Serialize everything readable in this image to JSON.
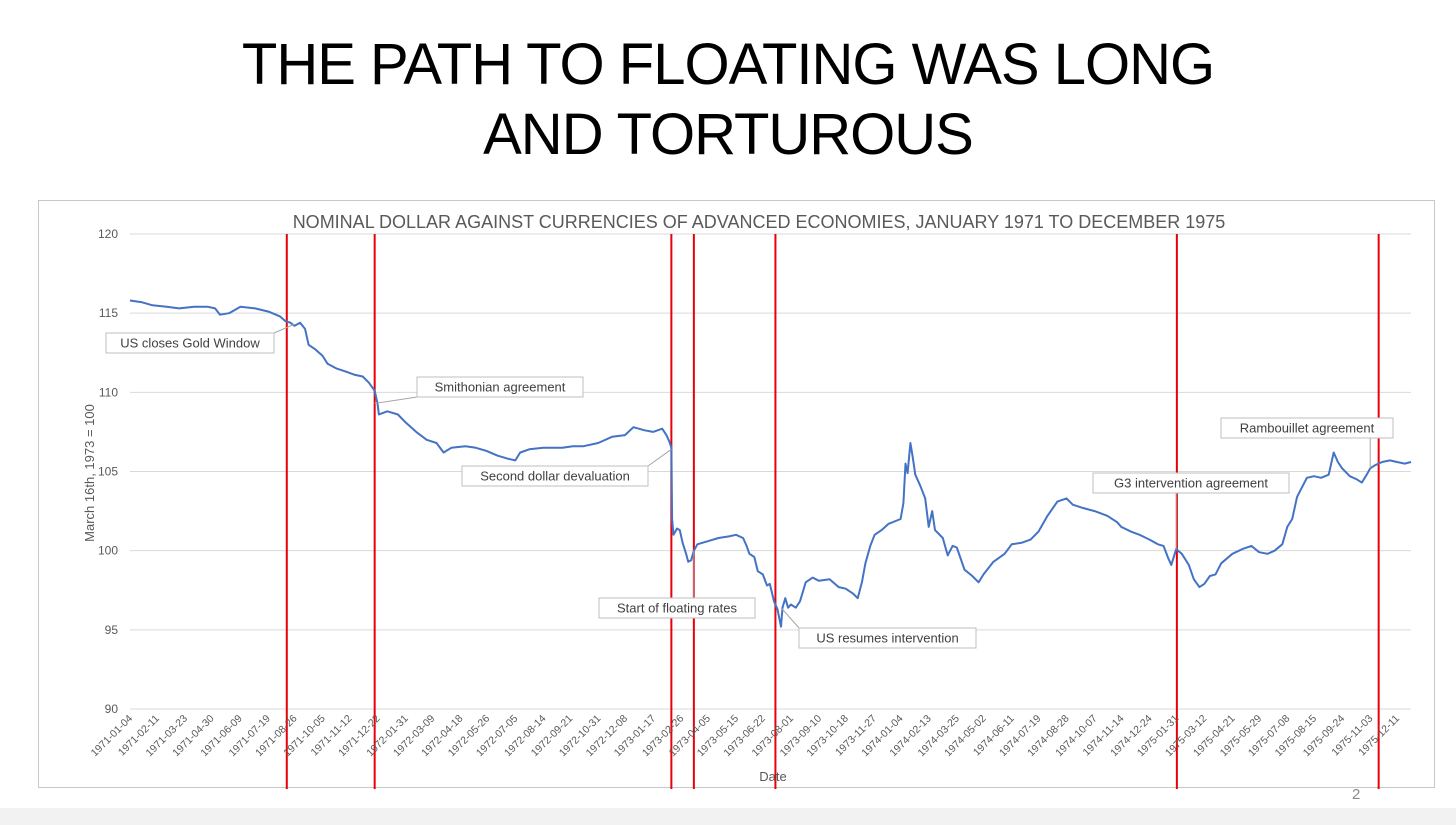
{
  "slide": {
    "title_line1": "THE PATH TO FLOATING WAS LONG",
    "title_line2": "AND TORTUROUS",
    "page_number": "2"
  },
  "colors": {
    "series": "#4472c4",
    "event_lines": "#e8000b",
    "grid": "#d9d9d9",
    "text": "#595959",
    "title_text": "#000000"
  },
  "chart_data": {
    "type": "line",
    "title": "NOMINAL DOLLAR AGAINST CURRENCIES OF ADVANCED ECONOMIES, JANUARY 1971 TO DECEMBER 1975",
    "xlabel": "Date",
    "ylabel": "March 16th, 1973 = 100",
    "ylim": [
      90,
      120
    ],
    "yticks": [
      90,
      95,
      100,
      105,
      110,
      115,
      120
    ],
    "grid": true,
    "x_tick_labels": [
      "1971-01-04",
      "1971-02-11",
      "1971-03-23",
      "1971-04-30",
      "1971-06-09",
      "1971-07-19",
      "1971-08-26",
      "1971-10-05",
      "1971-11-12",
      "1971-12-22",
      "1972-01-31",
      "1972-03-09",
      "1972-04-18",
      "1972-05-26",
      "1972-07-05",
      "1972-08-14",
      "1972-09-21",
      "1972-10-31",
      "1972-12-08",
      "1973-01-17",
      "1973-02-26",
      "1973-04-05",
      "1973-05-15",
      "1973-06-22",
      "1973-08-01",
      "1973-09-10",
      "1973-10-18",
      "1973-11-27",
      "1974-01-04",
      "1974-02-13",
      "1974-03-25",
      "1974-05-02",
      "1974-06-11",
      "1974-07-19",
      "1974-08-28",
      "1974-10-07",
      "1974-11-14",
      "1974-12-24",
      "1975-01-31",
      "1975-03-12",
      "1975-04-21",
      "1975-05-29",
      "1975-07-08",
      "1975-08-15",
      "1975-09-24",
      "1975-11-03",
      "1975-12-11"
    ],
    "series": [
      {
        "values": [
          [
            "1971-01-04",
            115.8
          ],
          [
            "1971-01-20",
            115.7
          ],
          [
            "1971-02-05",
            115.5
          ],
          [
            "1971-02-25",
            115.4
          ],
          [
            "1971-03-15",
            115.3
          ],
          [
            "1971-04-05",
            115.4
          ],
          [
            "1971-04-25",
            115.4
          ],
          [
            "1971-05-05",
            115.3
          ],
          [
            "1971-05-12",
            114.9
          ],
          [
            "1971-05-25",
            115.0
          ],
          [
            "1971-06-10",
            115.4
          ],
          [
            "1971-07-01",
            115.3
          ],
          [
            "1971-07-20",
            115.1
          ],
          [
            "1971-08-05",
            114.8
          ],
          [
            "1971-08-13",
            114.5
          ],
          [
            "1971-08-20",
            114.4
          ],
          [
            "1971-08-26",
            114.2
          ],
          [
            "1971-09-03",
            114.4
          ],
          [
            "1971-09-10",
            114.0
          ],
          [
            "1971-09-15",
            113.0
          ],
          [
            "1971-09-25",
            112.7
          ],
          [
            "1971-10-05",
            112.3
          ],
          [
            "1971-10-12",
            111.8
          ],
          [
            "1971-10-25",
            111.5
          ],
          [
            "1971-11-08",
            111.3
          ],
          [
            "1971-11-20",
            111.1
          ],
          [
            "1971-12-01",
            111.0
          ],
          [
            "1971-12-10",
            110.6
          ],
          [
            "1971-12-18",
            110.1
          ],
          [
            "1971-12-22",
            109.3
          ],
          [
            "1971-12-24",
            108.6
          ],
          [
            "1972-01-05",
            108.8
          ],
          [
            "1972-01-20",
            108.6
          ],
          [
            "1972-01-31",
            108.1
          ],
          [
            "1972-02-15",
            107.5
          ],
          [
            "1972-03-01",
            107.0
          ],
          [
            "1972-03-15",
            106.8
          ],
          [
            "1972-03-25",
            106.2
          ],
          [
            "1972-04-05",
            106.5
          ],
          [
            "1972-04-25",
            106.6
          ],
          [
            "1972-05-10",
            106.5
          ],
          [
            "1972-05-25",
            106.3
          ],
          [
            "1972-06-10",
            106.0
          ],
          [
            "1972-06-25",
            105.8
          ],
          [
            "1972-07-05",
            105.7
          ],
          [
            "1972-07-12",
            106.2
          ],
          [
            "1972-07-25",
            106.4
          ],
          [
            "1972-08-14",
            106.5
          ],
          [
            "1972-09-10",
            106.5
          ],
          [
            "1972-09-25",
            106.6
          ],
          [
            "1972-10-10",
            106.6
          ],
          [
            "1972-10-31",
            106.8
          ],
          [
            "1972-11-20",
            107.2
          ],
          [
            "1972-12-08",
            107.3
          ],
          [
            "1972-12-20",
            107.8
          ],
          [
            "1973-01-05",
            107.6
          ],
          [
            "1973-01-17",
            107.5
          ],
          [
            "1973-01-30",
            107.7
          ],
          [
            "1973-02-05",
            107.3
          ],
          [
            "1973-02-09",
            106.9
          ],
          [
            "1973-02-12",
            106.5
          ],
          [
            "1973-02-13",
            102.0
          ],
          [
            "1973-02-15",
            101.0
          ],
          [
            "1973-02-20",
            101.4
          ],
          [
            "1973-02-24",
            101.3
          ],
          [
            "1973-02-28",
            100.5
          ],
          [
            "1973-03-05",
            99.8
          ],
          [
            "1973-03-08",
            99.3
          ],
          [
            "1973-03-12",
            99.4
          ],
          [
            "1973-03-16",
            100.0
          ],
          [
            "1973-03-21",
            100.4
          ],
          [
            "1973-03-28",
            100.5
          ],
          [
            "1973-04-05",
            100.6
          ],
          [
            "1973-04-20",
            100.8
          ],
          [
            "1973-05-05",
            100.9
          ],
          [
            "1973-05-15",
            101.0
          ],
          [
            "1973-05-25",
            100.8
          ],
          [
            "1973-05-30",
            100.3
          ],
          [
            "1973-06-03",
            99.8
          ],
          [
            "1973-06-10",
            99.6
          ],
          [
            "1973-06-15",
            98.7
          ],
          [
            "1973-06-22",
            98.5
          ],
          [
            "1973-06-28",
            97.8
          ],
          [
            "1973-07-02",
            97.9
          ],
          [
            "1973-07-08",
            96.8
          ],
          [
            "1973-07-13",
            96.3
          ],
          [
            "1973-07-18",
            95.2
          ],
          [
            "1973-07-20",
            96.4
          ],
          [
            "1973-07-24",
            97.0
          ],
          [
            "1973-07-28",
            96.4
          ],
          [
            "1973-08-01",
            96.6
          ],
          [
            "1973-08-08",
            96.4
          ],
          [
            "1973-08-14",
            96.8
          ],
          [
            "1973-08-22",
            98.0
          ],
          [
            "1973-09-01",
            98.3
          ],
          [
            "1973-09-10",
            98.1
          ],
          [
            "1973-09-25",
            98.2
          ],
          [
            "1973-10-08",
            97.7
          ],
          [
            "1973-10-18",
            97.6
          ],
          [
            "1973-10-28",
            97.3
          ],
          [
            "1973-11-04",
            97.0
          ],
          [
            "1973-11-10",
            98.0
          ],
          [
            "1973-11-15",
            99.2
          ],
          [
            "1973-11-22",
            100.3
          ],
          [
            "1973-11-28",
            101.0
          ],
          [
            "1973-12-08",
            101.3
          ],
          [
            "1973-12-18",
            101.7
          ],
          [
            "1974-01-04",
            102.0
          ],
          [
            "1974-01-08",
            103.0
          ],
          [
            "1974-01-11",
            105.5
          ],
          [
            "1974-01-14",
            104.9
          ],
          [
            "1974-01-18",
            106.8
          ],
          [
            "1974-01-21",
            106.0
          ],
          [
            "1974-01-25",
            104.8
          ],
          [
            "1974-02-01",
            104.1
          ],
          [
            "1974-02-08",
            103.3
          ],
          [
            "1974-02-13",
            101.5
          ],
          [
            "1974-02-18",
            102.5
          ],
          [
            "1974-02-22",
            101.3
          ],
          [
            "1974-03-05",
            100.8
          ],
          [
            "1974-03-12",
            99.7
          ],
          [
            "1974-03-19",
            100.3
          ],
          [
            "1974-03-25",
            100.2
          ],
          [
            "1974-04-05",
            98.8
          ],
          [
            "1974-04-16",
            98.4
          ],
          [
            "1974-04-25",
            98.0
          ],
          [
            "1974-05-02",
            98.5
          ],
          [
            "1974-05-16",
            99.3
          ],
          [
            "1974-06-01",
            99.8
          ],
          [
            "1974-06-11",
            100.4
          ],
          [
            "1974-06-25",
            100.5
          ],
          [
            "1974-07-08",
            100.7
          ],
          [
            "1974-07-19",
            101.2
          ],
          [
            "1974-08-01",
            102.2
          ],
          [
            "1974-08-15",
            103.1
          ],
          [
            "1974-08-28",
            103.3
          ],
          [
            "1974-09-06",
            102.9
          ],
          [
            "1974-09-20",
            102.7
          ],
          [
            "1974-10-07",
            102.5
          ],
          [
            "1974-10-25",
            102.2
          ],
          [
            "1974-11-08",
            101.8
          ],
          [
            "1974-11-14",
            101.5
          ],
          [
            "1974-11-28",
            101.2
          ],
          [
            "1974-12-10",
            101.0
          ],
          [
            "1974-12-24",
            100.7
          ],
          [
            "1975-01-05",
            100.4
          ],
          [
            "1975-01-13",
            100.3
          ],
          [
            "1975-01-20",
            99.5
          ],
          [
            "1975-01-24",
            99.1
          ],
          [
            "1975-01-31",
            100.1
          ],
          [
            "1975-02-08",
            99.8
          ],
          [
            "1975-02-18",
            99.1
          ],
          [
            "1975-02-25",
            98.2
          ],
          [
            "1975-03-05",
            97.7
          ],
          [
            "1975-03-12",
            97.9
          ],
          [
            "1975-03-20",
            98.4
          ],
          [
            "1975-03-28",
            98.5
          ],
          [
            "1975-04-05",
            99.2
          ],
          [
            "1975-04-21",
            99.8
          ],
          [
            "1975-05-05",
            100.1
          ],
          [
            "1975-05-18",
            100.3
          ],
          [
            "1975-05-29",
            99.9
          ],
          [
            "1975-06-10",
            99.8
          ],
          [
            "1975-06-20",
            100.0
          ],
          [
            "1975-07-01",
            100.4
          ],
          [
            "1975-07-08",
            101.5
          ],
          [
            "1975-07-15",
            102.0
          ],
          [
            "1975-07-22",
            103.4
          ],
          [
            "1975-07-29",
            104.0
          ],
          [
            "1975-08-05",
            104.6
          ],
          [
            "1975-08-15",
            104.7
          ],
          [
            "1975-08-25",
            104.6
          ],
          [
            "1975-09-05",
            104.8
          ],
          [
            "1975-09-12",
            106.2
          ],
          [
            "1975-09-18",
            105.6
          ],
          [
            "1975-09-24",
            105.2
          ],
          [
            "1975-10-05",
            104.7
          ],
          [
            "1975-10-15",
            104.5
          ],
          [
            "1975-10-22",
            104.3
          ],
          [
            "1975-10-29",
            104.8
          ],
          [
            "1975-11-03",
            105.2
          ],
          [
            "1975-11-10",
            105.4
          ],
          [
            "1975-11-20",
            105.6
          ],
          [
            "1975-12-01",
            105.7
          ],
          [
            "1975-12-11",
            105.6
          ],
          [
            "1975-12-22",
            105.5
          ],
          [
            "1975-12-31",
            105.6
          ]
        ]
      }
    ],
    "event_lines": [
      {
        "date": "1971-08-15"
      },
      {
        "date": "1971-12-18"
      },
      {
        "date": "1973-02-12"
      },
      {
        "date": "1973-03-16"
      },
      {
        "date": "1973-07-10"
      },
      {
        "date": "1975-02-01"
      },
      {
        "date": "1975-11-15"
      }
    ],
    "annotations": [
      {
        "text": "US closes Gold Window",
        "date": "1971-08-26",
        "value": 114.3
      },
      {
        "text": "Smithonian agreement",
        "date": "1971-12-18",
        "value": 109.3
      },
      {
        "text": "Second dollar devaluation",
        "date": "1973-02-12",
        "value": 106.4
      },
      {
        "text": "Start of floating rates",
        "date": "1973-03-16",
        "value": 100.0
      },
      {
        "text": "US resumes intervention",
        "date": "1973-07-18",
        "value": 96.4
      },
      {
        "text": "G3 intervention agreement",
        "date": "1975-01-31",
        "value": 100.1
      },
      {
        "text": "Rambouillet agreement",
        "date": "1975-11-03",
        "value": 105.2
      }
    ]
  }
}
